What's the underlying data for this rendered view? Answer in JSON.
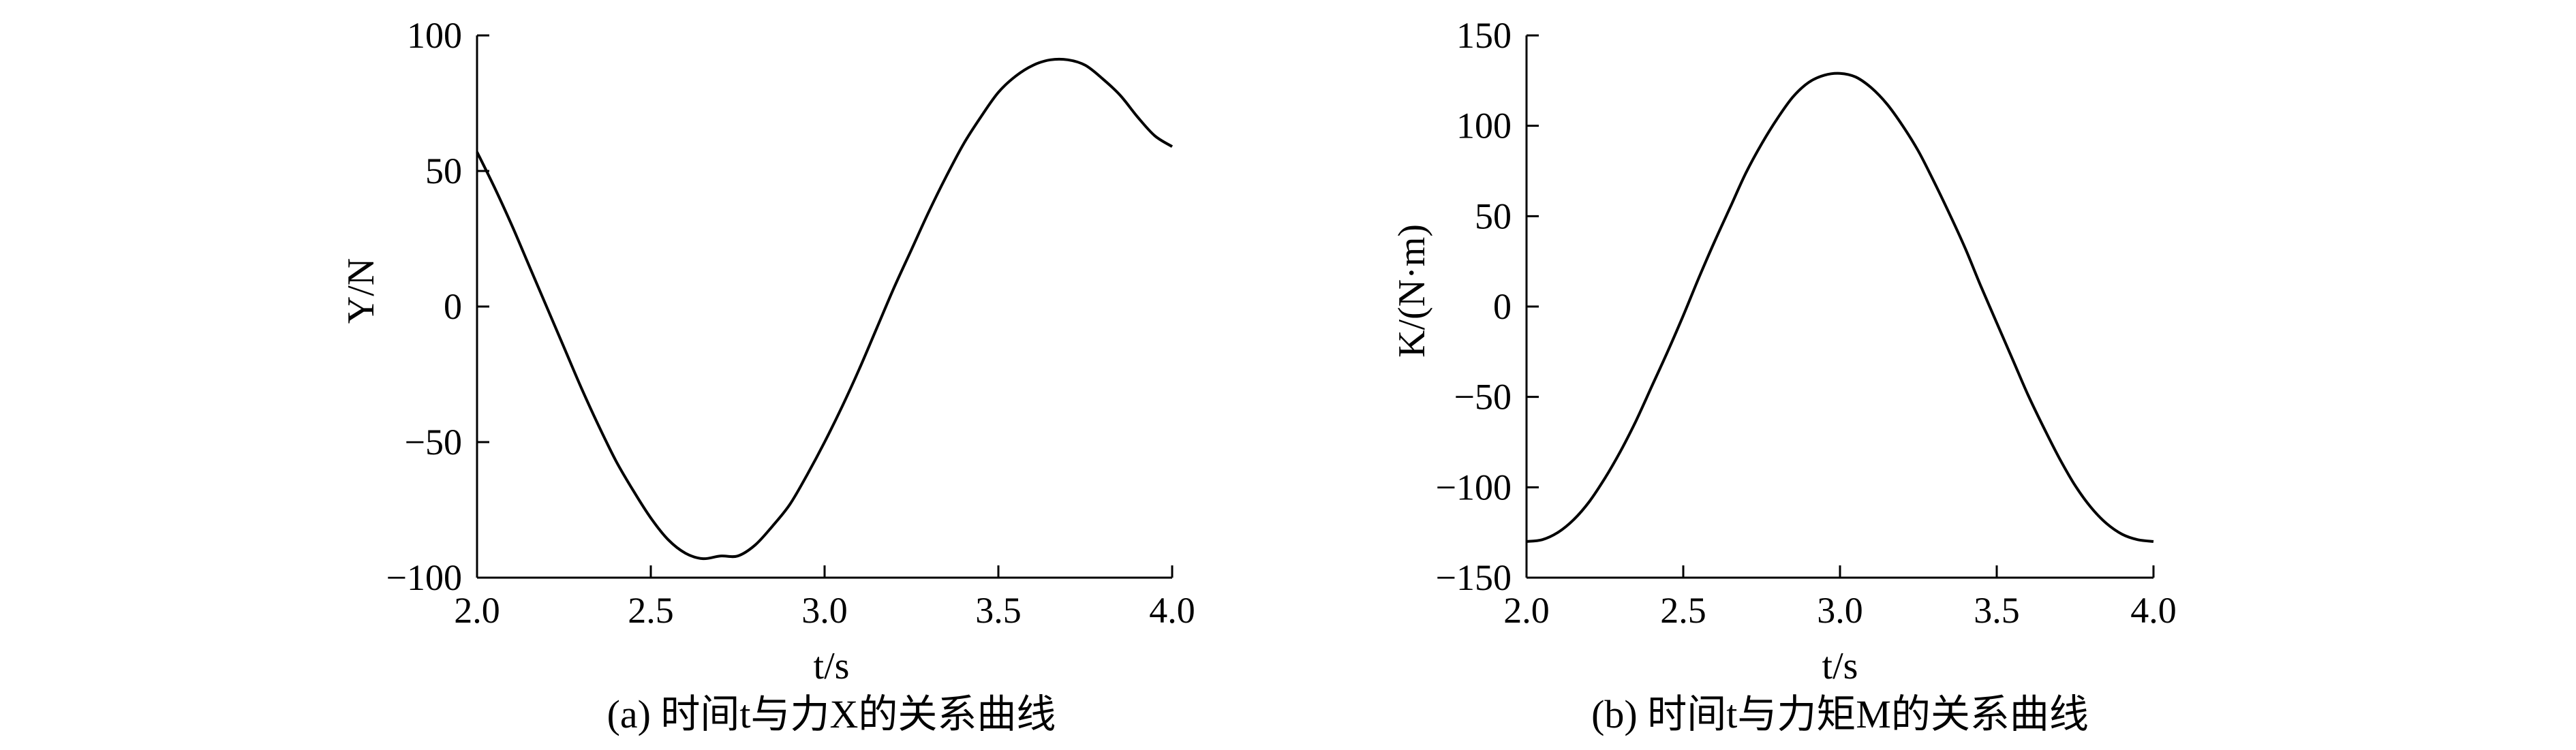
{
  "chart_data": [
    {
      "type": "line",
      "caption": "(a) 时间t与力X的关系曲线",
      "xlabel": "t/s",
      "ylabel": "Y/N",
      "xlim": [
        2.0,
        4.0
      ],
      "ylim": [
        -100,
        100
      ],
      "xticks": [
        "2.0",
        "2.5",
        "3.0",
        "3.5",
        "4.0"
      ],
      "yticks": [
        "100",
        "50",
        "0",
        "−50",
        "−100"
      ],
      "grid": false,
      "x": [
        2.0,
        2.05,
        2.1,
        2.15,
        2.2,
        2.25,
        2.3,
        2.35,
        2.4,
        2.45,
        2.5,
        2.55,
        2.6,
        2.65,
        2.7,
        2.75,
        2.8,
        2.85,
        2.9,
        2.95,
        3.0,
        3.05,
        3.1,
        3.15,
        3.2,
        3.25,
        3.3,
        3.35,
        3.4,
        3.45,
        3.5,
        3.55,
        3.6,
        3.65,
        3.7,
        3.75,
        3.8,
        3.85,
        3.9,
        3.95,
        4.0
      ],
      "series": [
        {
          "values": [
            57,
            44,
            30,
            15,
            0,
            -15,
            -30,
            -44,
            -57,
            -68,
            -78,
            -86,
            -91,
            -93,
            -92,
            -92,
            -88,
            -81,
            -73,
            -62,
            -50,
            -37,
            -23,
            -8,
            7,
            21,
            35,
            48,
            60,
            70,
            79,
            85,
            89,
            91,
            91,
            89,
            84,
            78,
            70,
            63,
            59
          ]
        }
      ]
    },
    {
      "type": "line",
      "caption": "(b) 时间t与力矩M的关系曲线",
      "xlabel": "t/s",
      "ylabel": "K/(N·m)",
      "xlim": [
        2.0,
        4.0
      ],
      "ylim": [
        -150,
        150
      ],
      "xticks": [
        "2.0",
        "2.5",
        "3.0",
        "3.5",
        "4.0"
      ],
      "yticks": [
        "150",
        "100",
        "50",
        "0",
        "−50",
        "−100",
        "−150"
      ],
      "grid": false,
      "x": [
        2.0,
        2.05,
        2.1,
        2.15,
        2.2,
        2.25,
        2.3,
        2.35,
        2.4,
        2.45,
        2.5,
        2.55,
        2.6,
        2.65,
        2.7,
        2.75,
        2.8,
        2.85,
        2.9,
        2.95,
        3.0,
        3.05,
        3.1,
        3.15,
        3.2,
        3.25,
        3.3,
        3.35,
        3.4,
        3.45,
        3.5,
        3.55,
        3.6,
        3.65,
        3.7,
        3.75,
        3.8,
        3.85,
        3.9,
        3.95,
        4.0
      ],
      "series": [
        {
          "values": [
            -130,
            -129,
            -125,
            -118,
            -108,
            -95,
            -80,
            -63,
            -44,
            -25,
            -5,
            16,
            36,
            55,
            74,
            90,
            104,
            116,
            124,
            128,
            129,
            127,
            121,
            112,
            100,
            86,
            69,
            51,
            32,
            11,
            -9,
            -29,
            -49,
            -67,
            -84,
            -99,
            -111,
            -120,
            -126,
            -129,
            -130
          ]
        }
      ]
    }
  ]
}
